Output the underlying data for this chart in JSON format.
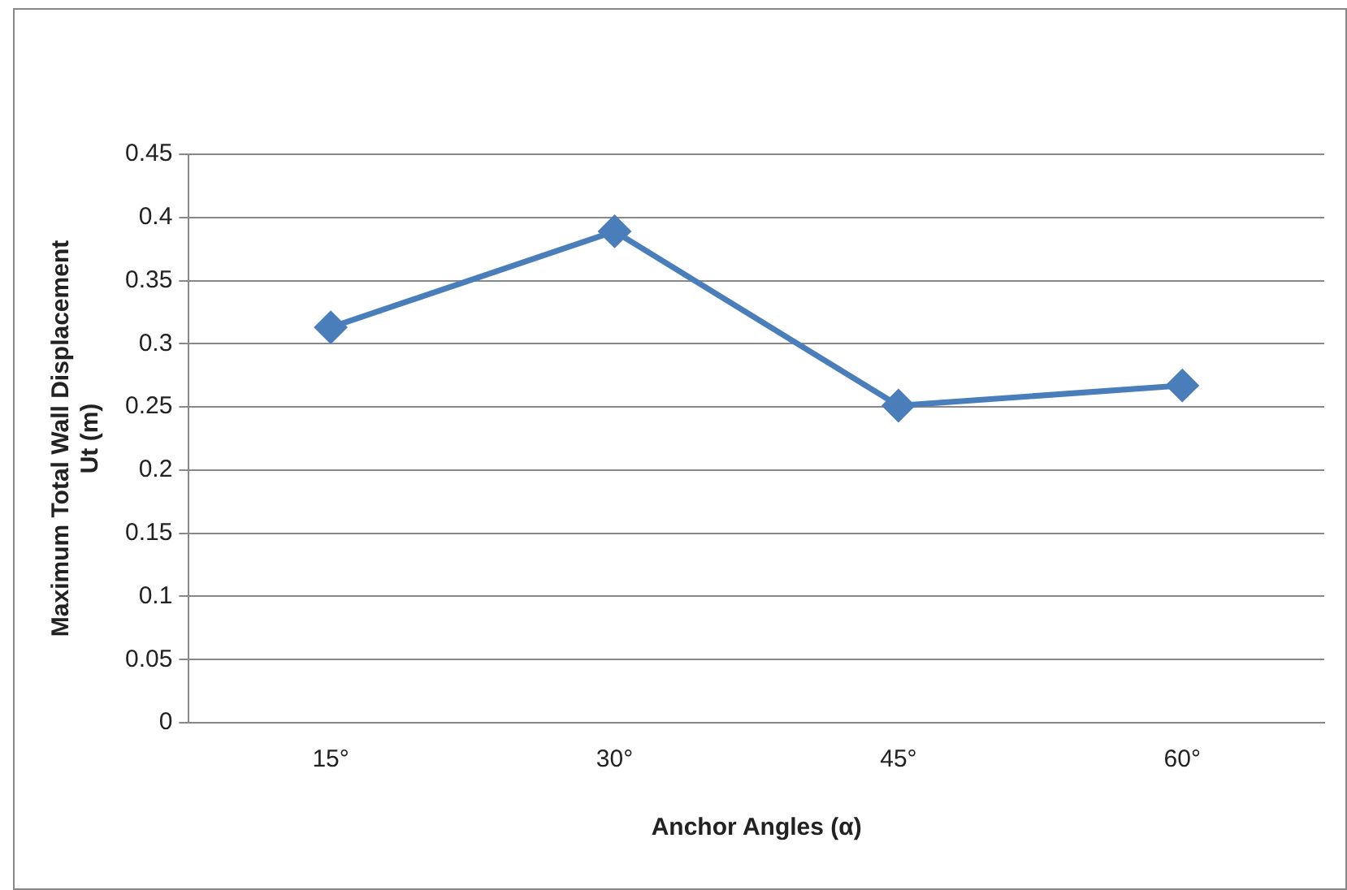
{
  "chart_data": {
    "type": "line",
    "xlabel": "Anchor Angles (α)",
    "ylabel": "Maximum Total Wall Displacement\nUt (m)",
    "categories": [
      "15°",
      "30°",
      "45°",
      "60°"
    ],
    "series": [
      {
        "color": "#4a7ebb",
        "values": [
          0.313,
          0.389,
          0.251,
          0.267
        ]
      }
    ],
    "ylim": [
      0,
      0.45
    ],
    "yticks": [
      0,
      0.05,
      0.1,
      0.15,
      0.2,
      0.25,
      0.3,
      0.35,
      0.4,
      0.45
    ],
    "grid": "y",
    "legend": false,
    "marker": "diamond",
    "line_style": "solid"
  }
}
